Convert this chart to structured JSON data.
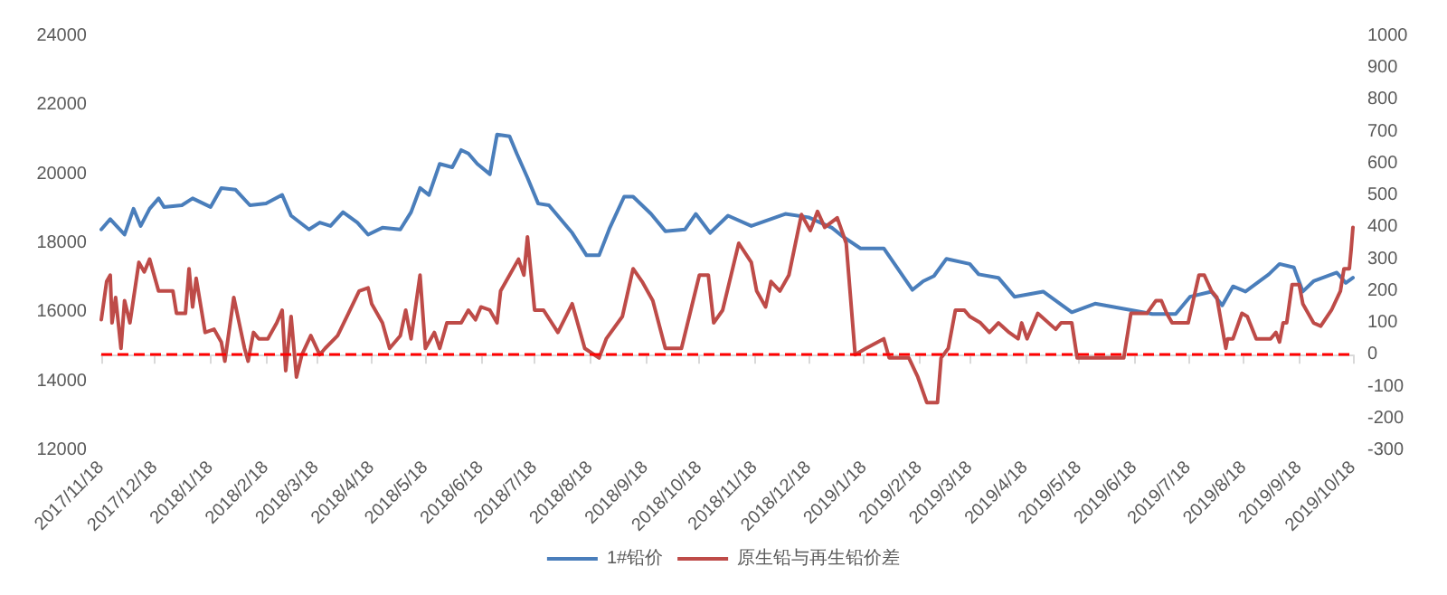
{
  "chart_data": {
    "type": "line",
    "xlim": [
      "2017-11-18",
      "2019-10-18"
    ],
    "xticks": [
      {
        "value": "2017-11-18",
        "label": "2017/11/18"
      },
      {
        "value": "2017-12-18",
        "label": "2017/12/18"
      },
      {
        "value": "2018-01-18",
        "label": "2018/1/18"
      },
      {
        "value": "2018-02-18",
        "label": "2018/2/18"
      },
      {
        "value": "2018-03-18",
        "label": "2018/3/18"
      },
      {
        "value": "2018-04-18",
        "label": "2018/4/18"
      },
      {
        "value": "2018-05-18",
        "label": "2018/5/18"
      },
      {
        "value": "2018-06-18",
        "label": "2018/6/18"
      },
      {
        "value": "2018-07-18",
        "label": "2018/7/18"
      },
      {
        "value": "2018-08-18",
        "label": "2018/8/18"
      },
      {
        "value": "2018-09-18",
        "label": "2018/9/18"
      },
      {
        "value": "2018-10-18",
        "label": "2018/10/18"
      },
      {
        "value": "2018-11-18",
        "label": "2018/11/18"
      },
      {
        "value": "2018-12-18",
        "label": "2018/12/18"
      },
      {
        "value": "2019-01-18",
        "label": "2019/1/18"
      },
      {
        "value": "2019-02-18",
        "label": "2019/2/18"
      },
      {
        "value": "2019-03-18",
        "label": "2019/3/18"
      },
      {
        "value": "2019-04-18",
        "label": "2019/4/18"
      },
      {
        "value": "2019-05-18",
        "label": "2019/5/18"
      },
      {
        "value": "2019-06-18",
        "label": "2019/6/18"
      },
      {
        "value": "2019-07-18",
        "label": "2019/7/18"
      },
      {
        "value": "2019-08-18",
        "label": "2019/8/18"
      },
      {
        "value": "2019-09-18",
        "label": "2019/9/18"
      },
      {
        "value": "2019-10-18",
        "label": "2019/10/18"
      }
    ],
    "ylim": [
      12000,
      24000
    ],
    "yticks": [
      12000,
      14000,
      16000,
      18000,
      20000,
      22000,
      24000
    ],
    "y2lim": [
      -300,
      1000
    ],
    "y2ticks": [
      -300,
      -200,
      -100,
      0,
      100,
      200,
      300,
      400,
      500,
      600,
      700,
      800,
      900,
      1000
    ],
    "grid": false,
    "legend": "bottom",
    "marker": "none",
    "line_style": "solid",
    "ref_lines": [
      {
        "axis": "y2",
        "value": 0,
        "label": null,
        "color": "#ff0000",
        "line_style": "dashed"
      }
    ],
    "series": [
      {
        "name": "1#铅价",
        "color": "#4a7ebb",
        "x": [
          "2017-11-18",
          "2017-11-23",
          "2017-12-01",
          "2017-12-06",
          "2017-12-10",
          "2017-12-15",
          "2017-12-20",
          "2017-12-23",
          "2018-01-02",
          "2018-01-08",
          "2018-01-18",
          "2018-01-24",
          "2018-02-01",
          "2018-02-09",
          "2018-02-18",
          "2018-02-27",
          "2018-03-04",
          "2018-03-14",
          "2018-03-20",
          "2018-03-26",
          "2018-04-02",
          "2018-04-10",
          "2018-04-16",
          "2018-04-24",
          "2018-05-04",
          "2018-05-10",
          "2018-05-15",
          "2018-05-20",
          "2018-05-26",
          "2018-06-02",
          "2018-06-07",
          "2018-06-11",
          "2018-06-16",
          "2018-06-23",
          "2018-06-27",
          "2018-07-04",
          "2018-07-08",
          "2018-07-14",
          "2018-07-20",
          "2018-07-26",
          "2018-08-08",
          "2018-08-16",
          "2018-08-23",
          "2018-08-29",
          "2018-09-06",
          "2018-09-11",
          "2018-09-21",
          "2018-09-29",
          "2018-10-10",
          "2018-10-16",
          "2018-10-24",
          "2018-11-03",
          "2018-11-16",
          "2018-12-05",
          "2018-12-18",
          "2018-12-31",
          "2019-01-06",
          "2019-01-16",
          "2019-01-29",
          "2019-02-04",
          "2019-02-14",
          "2019-02-20",
          "2019-02-26",
          "2019-03-05",
          "2019-03-18",
          "2019-03-23",
          "2019-04-03",
          "2019-04-12",
          "2019-04-28",
          "2019-05-14",
          "2019-05-27",
          "2019-06-12",
          "2019-06-28",
          "2019-07-11",
          "2019-07-19",
          "2019-07-31",
          "2019-08-06",
          "2019-08-12",
          "2019-08-19",
          "2019-09-01",
          "2019-09-07",
          "2019-09-15",
          "2019-09-20",
          "2019-09-26",
          "2019-10-09",
          "2019-10-14",
          "2019-10-18"
        ],
        "values": [
          18400,
          18700,
          18250,
          19000,
          18500,
          19000,
          19300,
          19050,
          19100,
          19300,
          19050,
          19600,
          19550,
          19100,
          19150,
          19400,
          18800,
          18400,
          18600,
          18500,
          18900,
          18600,
          18250,
          18450,
          18400,
          18900,
          19600,
          19400,
          20300,
          20200,
          20700,
          20600,
          20300,
          20000,
          21150,
          21100,
          20600,
          19900,
          19150,
          19100,
          18300,
          17650,
          17650,
          18450,
          19350,
          19350,
          18850,
          18350,
          18400,
          18850,
          18300,
          18800,
          18500,
          18850,
          18750,
          18450,
          18200,
          17850,
          17850,
          17400,
          16650,
          16900,
          17050,
          17550,
          17400,
          17100,
          17000,
          16450,
          16600,
          16000,
          16250,
          16100,
          15950,
          15950,
          16450,
          16600,
          16200,
          16750,
          16600,
          17100,
          17400,
          17300,
          16600,
          16900,
          17150,
          16850,
          17000
        ]
      },
      {
        "name": "原生铅与再生铅价差",
        "color": "#be4b48",
        "axis": "y2",
        "x": [
          "2017-11-18",
          "2017-11-21",
          "2017-11-23",
          "2017-11-24",
          "2017-11-26",
          "2017-11-29",
          "2017-12-01",
          "2017-12-04",
          "2017-12-09",
          "2017-12-12",
          "2017-12-15",
          "2017-12-20",
          "2017-12-28",
          "2017-12-30",
          "2018-01-04",
          "2018-01-06",
          "2018-01-08",
          "2018-01-10",
          "2018-01-15",
          "2018-01-20",
          "2018-01-24",
          "2018-01-26",
          "2018-01-31",
          "2018-02-03",
          "2018-02-06",
          "2018-02-08",
          "2018-02-11",
          "2018-02-14",
          "2018-02-19",
          "2018-02-24",
          "2018-02-27",
          "2018-03-01",
          "2018-03-04",
          "2018-03-07",
          "2018-03-10",
          "2018-03-15",
          "2018-03-20",
          "2018-03-23",
          "2018-03-30",
          "2018-04-05",
          "2018-04-11",
          "2018-04-16",
          "2018-04-18",
          "2018-04-24",
          "2018-04-28",
          "2018-05-04",
          "2018-05-07",
          "2018-05-10",
          "2018-05-15",
          "2018-05-18",
          "2018-05-23",
          "2018-05-26",
          "2018-05-30",
          "2018-06-07",
          "2018-06-11",
          "2018-06-15",
          "2018-06-18",
          "2018-06-23",
          "2018-06-27",
          "2018-06-29",
          "2018-07-04",
          "2018-07-09",
          "2018-07-12",
          "2018-07-14",
          "2018-07-18",
          "2018-07-23",
          "2018-07-31",
          "2018-08-08",
          "2018-08-15",
          "2018-08-23",
          "2018-08-27",
          "2018-09-05",
          "2018-09-11",
          "2018-09-16",
          "2018-09-22",
          "2018-09-29",
          "2018-10-08",
          "2018-10-18",
          "2018-10-23",
          "2018-10-26",
          "2018-10-31",
          "2018-11-09",
          "2018-11-16",
          "2018-11-19",
          "2018-11-24",
          "2018-11-27",
          "2018-12-02",
          "2018-12-07",
          "2018-12-14",
          "2018-12-19",
          "2018-12-23",
          "2018-12-27",
          "2019-01-03",
          "2019-01-08",
          "2019-01-13",
          "2019-01-19",
          "2019-01-29",
          "2019-02-01",
          "2019-02-12",
          "2019-02-17",
          "2019-02-22",
          "2019-02-28",
          "2019-03-02",
          "2019-03-06",
          "2019-03-10",
          "2019-03-15",
          "2019-03-18",
          "2019-03-24",
          "2019-03-29",
          "2019-04-03",
          "2019-04-09",
          "2019-04-14",
          "2019-04-16",
          "2019-04-19",
          "2019-04-25",
          "2019-05-05",
          "2019-05-08",
          "2019-05-14",
          "2019-05-17",
          "2019-06-12",
          "2019-06-16",
          "2019-06-25",
          "2019-06-30",
          "2019-07-03",
          "2019-07-06",
          "2019-07-09",
          "2019-07-18",
          "2019-07-24",
          "2019-07-27",
          "2019-07-31",
          "2019-08-03",
          "2019-08-08",
          "2019-08-09",
          "2019-08-12",
          "2019-08-17",
          "2019-08-20",
          "2019-08-25",
          "2019-09-02",
          "2019-09-05",
          "2019-09-07",
          "2019-09-09",
          "2019-09-11",
          "2019-09-14",
          "2019-09-18",
          "2019-09-20",
          "2019-09-26",
          "2019-09-30",
          "2019-10-06",
          "2019-10-11",
          "2019-10-13",
          "2019-10-16",
          "2019-10-17",
          "2019-10-18"
        ],
        "values": [
          110,
          230,
          250,
          100,
          180,
          20,
          170,
          100,
          290,
          260,
          300,
          200,
          200,
          130,
          130,
          270,
          150,
          240,
          70,
          80,
          40,
          -20,
          180,
          100,
          20,
          -20,
          70,
          50,
          50,
          100,
          140,
          -50,
          120,
          -70,
          0,
          60,
          0,
          20,
          60,
          130,
          200,
          210,
          160,
          100,
          20,
          60,
          140,
          50,
          250,
          20,
          70,
          20,
          100,
          100,
          140,
          110,
          150,
          140,
          100,
          200,
          250,
          300,
          250,
          370,
          140,
          140,
          70,
          160,
          20,
          -10,
          50,
          120,
          270,
          230,
          170,
          20,
          20,
          250,
          250,
          100,
          140,
          350,
          290,
          200,
          150,
          230,
          200,
          250,
          440,
          390,
          450,
          400,
          430,
          350,
          0,
          20,
          50,
          -10,
          -10,
          -70,
          -150,
          -150,
          -10,
          20,
          140,
          140,
          120,
          100,
          70,
          100,
          70,
          50,
          100,
          50,
          130,
          80,
          100,
          100,
          -10,
          -10,
          130,
          130,
          170,
          170,
          130,
          100,
          100,
          250,
          250,
          200,
          180,
          20,
          50,
          50,
          130,
          120,
          50,
          50,
          70,
          40,
          100,
          100,
          220,
          220,
          160,
          100,
          90,
          140,
          200,
          270,
          270,
          330,
          400
        ]
      }
    ]
  }
}
